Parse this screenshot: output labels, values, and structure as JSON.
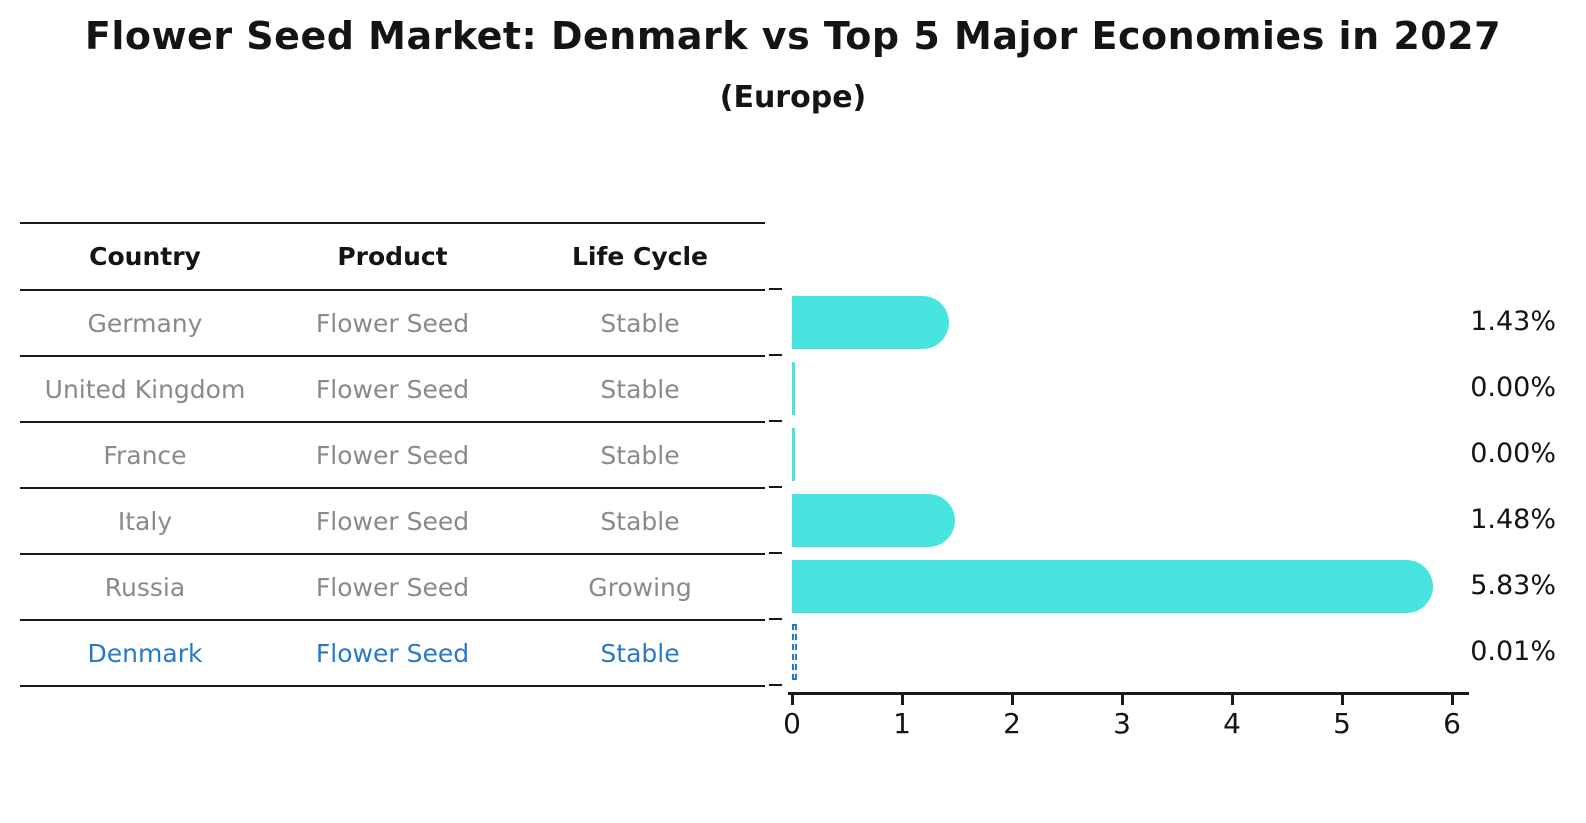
{
  "title": "Flower Seed Market: Denmark vs Top 5 Major Economies in 2027",
  "subtitle": "(Europe)",
  "colors": {
    "bar": "#48E5E0",
    "highlight": "#2979C9",
    "row_text": "#8A8A8A",
    "ink": "#141414",
    "line": "#1A1A1A"
  },
  "table": {
    "headers": [
      "Country",
      "Product",
      "Life Cycle"
    ],
    "rows": [
      {
        "country": "Germany",
        "product": "Flower Seed",
        "life_cycle": "Stable"
      },
      {
        "country": "United Kingdom",
        "product": "Flower Seed",
        "life_cycle": "Stable"
      },
      {
        "country": "France",
        "product": "Flower Seed",
        "life_cycle": "Stable"
      },
      {
        "country": "Italy",
        "product": "Flower Seed",
        "life_cycle": "Stable"
      },
      {
        "country": "Russia",
        "product": "Flower Seed",
        "life_cycle": "Growing"
      },
      {
        "country": "Denmark",
        "product": "Flower Seed",
        "life_cycle": "Stable"
      }
    ],
    "highlighted_row": "Denmark"
  },
  "chart_data": {
    "type": "bar",
    "orientation": "horizontal",
    "title": "Flower Seed Market: Denmark vs Top 5 Major Economies in 2027",
    "subtitle": "(Europe)",
    "categories": [
      "Germany",
      "United Kingdom",
      "France",
      "Italy",
      "Russia",
      "Denmark"
    ],
    "values": [
      1.43,
      0.0,
      0.0,
      1.48,
      5.83,
      0.01
    ],
    "value_labels": [
      "1.43%",
      "0.00%",
      "0.00%",
      "1.48%",
      "5.83%",
      "0.01%"
    ],
    "x_ticks": [
      0,
      1,
      2,
      3,
      4,
      5,
      6
    ],
    "xlim": [
      0,
      6.15
    ],
    "highlight_index": 5,
    "grid": false,
    "legend": false
  }
}
